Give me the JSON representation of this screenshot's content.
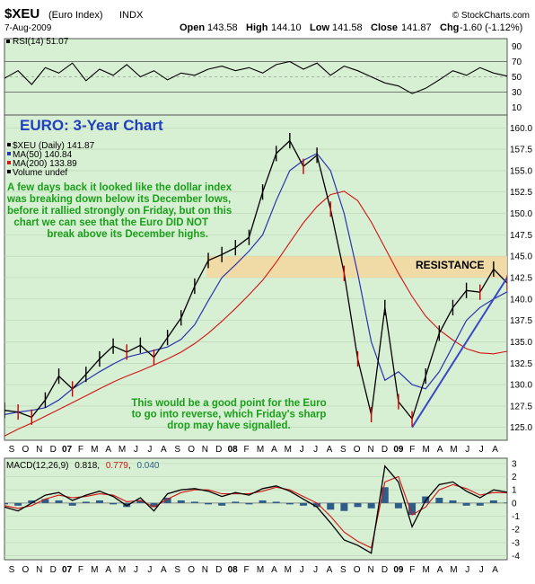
{
  "header": {
    "symbol": "$XEU",
    "name": "(Euro Index)",
    "exchange": "INDX",
    "source": "© StockCharts.com",
    "date": "7-Aug-2009",
    "open_label": "Open",
    "open": "143.58",
    "high_label": "High",
    "high": "144.10",
    "low_label": "Low",
    "low": "141.58",
    "close_label": "Close",
    "close": "141.87",
    "chg_label": "Chg",
    "chg": "-1.60 (-1.12%)"
  },
  "colors": {
    "panel_bg": "#d7efd2",
    "price_bars": "#000000",
    "down_bars": "#cc0000",
    "ma50": "#2a34b0",
    "ma200": "#d21414",
    "resistance_band": "#f5d7a0",
    "trendline": "#3a48c8",
    "annotation_green": "#1aa01a",
    "title_blue": "#1f3fbf",
    "rsi_fill": "#555555",
    "histogram": "#2f5d8a"
  },
  "chart_data": [
    {
      "type": "line",
      "panel": "rsi",
      "legend": "RSI(14) 51.07",
      "y_ticks": [
        90,
        70,
        50,
        30,
        10
      ],
      "ylim": [
        0,
        100
      ],
      "reference_lines": [
        70,
        30
      ],
      "series": [
        {
          "name": "RSI(14)",
          "x": [
            0,
            1,
            2,
            3,
            4,
            5,
            6,
            7,
            8,
            9,
            10,
            11,
            12,
            13,
            14,
            15,
            16,
            17,
            18,
            19,
            20,
            21,
            22,
            23,
            24,
            25,
            26,
            27,
            28,
            29,
            30,
            31,
            32,
            33,
            34,
            35,
            36,
            37
          ],
          "values": [
            48,
            58,
            40,
            62,
            55,
            68,
            45,
            60,
            52,
            66,
            50,
            58,
            46,
            55,
            52,
            60,
            64,
            58,
            62,
            55,
            66,
            70,
            60,
            68,
            52,
            64,
            58,
            50,
            42,
            38,
            28,
            35,
            46,
            58,
            52,
            62,
            55,
            51
          ]
        }
      ]
    },
    {
      "type": "line",
      "panel": "price",
      "chart_title": "EURO: 3-Year Chart",
      "legend": [
        {
          "label": "$XEU (Daily) 141.87",
          "color": "#000000"
        },
        {
          "label": "MA(50) 140.84",
          "color": "#2a34b0"
        },
        {
          "label": "MA(200) 133.89",
          "color": "#d21414"
        },
        {
          "label": "Volume undef",
          "color": "#000000"
        }
      ],
      "y_ticks": [
        160.0,
        157.5,
        155.0,
        152.5,
        150.0,
        147.5,
        145.0,
        142.5,
        140.0,
        137.5,
        135.0,
        132.5,
        130.0,
        127.5,
        125.0
      ],
      "ylim": [
        123.5,
        161.5
      ],
      "resistance": {
        "label": "RESISTANCE",
        "range": [
          142.5,
          145.0
        ]
      },
      "x_labels": [
        "S",
        "O",
        "N",
        "D",
        "07",
        "F",
        "M",
        "A",
        "M",
        "J",
        "J",
        "A",
        "S",
        "O",
        "N",
        "D",
        "08",
        "F",
        "M",
        "A",
        "M",
        "J",
        "J",
        "A",
        "S",
        "O",
        "N",
        "D",
        "09",
        "F",
        "M",
        "A",
        "M",
        "J",
        "J",
        "A"
      ],
      "series": [
        {
          "name": "$XEU (Daily)",
          "x": [
            0,
            1,
            2,
            3,
            4,
            5,
            6,
            7,
            8,
            9,
            10,
            11,
            12,
            13,
            14,
            15,
            16,
            17,
            18,
            19,
            20,
            21,
            22,
            23,
            24,
            25,
            26,
            27,
            28,
            29,
            30,
            31,
            32,
            33,
            34,
            35,
            36,
            37
          ],
          "values": [
            127.0,
            126.8,
            126.2,
            128.2,
            131.0,
            129.5,
            131.2,
            133.0,
            134.5,
            133.8,
            134.6,
            133.2,
            135.5,
            137.8,
            141.5,
            144.5,
            145.2,
            146.0,
            147.2,
            152.5,
            157.0,
            158.5,
            155.5,
            156.8,
            150.5,
            143.0,
            133.0,
            126.5,
            139.0,
            128.0,
            126.0,
            131.0,
            136.0,
            139.0,
            141.0,
            140.8,
            143.5,
            141.87
          ]
        },
        {
          "name": "MA(50)",
          "x": [
            0,
            1,
            2,
            3,
            4,
            5,
            6,
            7,
            8,
            9,
            10,
            11,
            12,
            13,
            14,
            15,
            16,
            17,
            18,
            19,
            20,
            21,
            22,
            23,
            24,
            25,
            26,
            27,
            28,
            29,
            30,
            31,
            32,
            33,
            34,
            35,
            36,
            37
          ],
          "values": [
            126.5,
            126.8,
            127.0,
            127.3,
            128.2,
            129.5,
            130.5,
            131.5,
            132.4,
            133.2,
            133.6,
            134.0,
            134.4,
            135.3,
            137.0,
            139.8,
            142.5,
            144.0,
            145.6,
            147.5,
            151.5,
            155.0,
            156.2,
            157.0,
            155.0,
            150.0,
            143.0,
            135.0,
            130.5,
            131.5,
            130.0,
            129.5,
            131.5,
            134.5,
            137.5,
            139.0,
            140.0,
            140.84
          ]
        },
        {
          "name": "MA(200)",
          "x": [
            0,
            1,
            2,
            3,
            4,
            5,
            6,
            7,
            8,
            9,
            10,
            11,
            12,
            13,
            14,
            15,
            16,
            17,
            18,
            19,
            20,
            21,
            22,
            23,
            24,
            25,
            26,
            27,
            28,
            29,
            30,
            31,
            32,
            33,
            34,
            35,
            36,
            37
          ],
          "values": [
            124.0,
            124.8,
            125.5,
            126.3,
            127.1,
            127.9,
            128.7,
            129.5,
            130.3,
            131.0,
            131.6,
            132.3,
            133.0,
            133.8,
            134.8,
            136.0,
            137.4,
            138.9,
            140.5,
            142.2,
            144.3,
            146.6,
            148.9,
            150.8,
            152.2,
            152.6,
            151.5,
            149.0,
            146.0,
            143.0,
            140.3,
            138.0,
            136.4,
            135.2,
            134.2,
            133.7,
            133.6,
            133.89
          ]
        },
        {
          "name": "Trendline",
          "x": [
            30,
            37
          ],
          "values": [
            125.0,
            142.5
          ]
        }
      ],
      "annotations": [
        {
          "id": "note1",
          "lines": [
            "A few days back it looked like the dollar index",
            "was breaking down below its December lows,",
            "before it rallied strongly on Friday, but on this",
            "chart we can see that the Euro DID NOT",
            "break above its December highs."
          ]
        },
        {
          "id": "note2",
          "lines": [
            "This would be a good point for the Euro",
            "to go into reverse, which Friday's sharp",
            "drop may have signalled."
          ]
        }
      ]
    },
    {
      "type": "line",
      "panel": "macd",
      "legend": {
        "prefix": "MACD(12,26,9)",
        "macd": "0.818",
        "signal": "0.779",
        "histogram": "0.040"
      },
      "y_ticks": [
        3,
        2,
        1,
        0,
        -1,
        -2,
        -3,
        -4
      ],
      "ylim": [
        -4.3,
        3.4
      ],
      "x_labels": [
        "S",
        "O",
        "N",
        "D",
        "07",
        "F",
        "M",
        "A",
        "M",
        "J",
        "J",
        "A",
        "S",
        "O",
        "N",
        "D",
        "08",
        "F",
        "M",
        "A",
        "M",
        "J",
        "J",
        "A",
        "S",
        "O",
        "N",
        "D",
        "09",
        "F",
        "M",
        "A",
        "M",
        "J",
        "J",
        "A"
      ],
      "series": [
        {
          "name": "MACD",
          "x": [
            0,
            1,
            2,
            3,
            4,
            5,
            6,
            7,
            8,
            9,
            10,
            11,
            12,
            13,
            14,
            15,
            16,
            17,
            18,
            19,
            20,
            21,
            22,
            23,
            24,
            25,
            26,
            27,
            28,
            29,
            30,
            31,
            32,
            33,
            34,
            35,
            36,
            37
          ],
          "values": [
            -0.3,
            -0.6,
            0.0,
            0.6,
            0.8,
            0.2,
            0.6,
            0.9,
            0.5,
            -0.2,
            0.4,
            -0.6,
            0.7,
            1.0,
            1.1,
            0.9,
            0.5,
            0.8,
            0.6,
            1.1,
            1.3,
            0.9,
            0.3,
            -0.3,
            -1.5,
            -2.8,
            -3.2,
            -3.8,
            2.8,
            1.6,
            -1.8,
            0.2,
            1.4,
            1.6,
            0.9,
            0.4,
            1.0,
            0.818
          ]
        },
        {
          "name": "Signal",
          "x": [
            0,
            1,
            2,
            3,
            4,
            5,
            6,
            7,
            8,
            9,
            10,
            11,
            12,
            13,
            14,
            15,
            16,
            17,
            18,
            19,
            20,
            21,
            22,
            23,
            24,
            25,
            26,
            27,
            28,
            29,
            30,
            31,
            32,
            33,
            34,
            35,
            36,
            37
          ],
          "values": [
            -0.2,
            -0.4,
            -0.2,
            0.3,
            0.6,
            0.4,
            0.5,
            0.7,
            0.6,
            0.1,
            0.2,
            -0.3,
            0.3,
            0.8,
            1.0,
            1.0,
            0.7,
            0.7,
            0.7,
            0.9,
            1.2,
            1.0,
            0.5,
            0.0,
            -1.0,
            -2.2,
            -2.9,
            -3.4,
            1.6,
            2.0,
            -0.9,
            -0.3,
            1.0,
            1.4,
            1.1,
            0.6,
            0.8,
            0.779
          ]
        }
      ]
    }
  ]
}
